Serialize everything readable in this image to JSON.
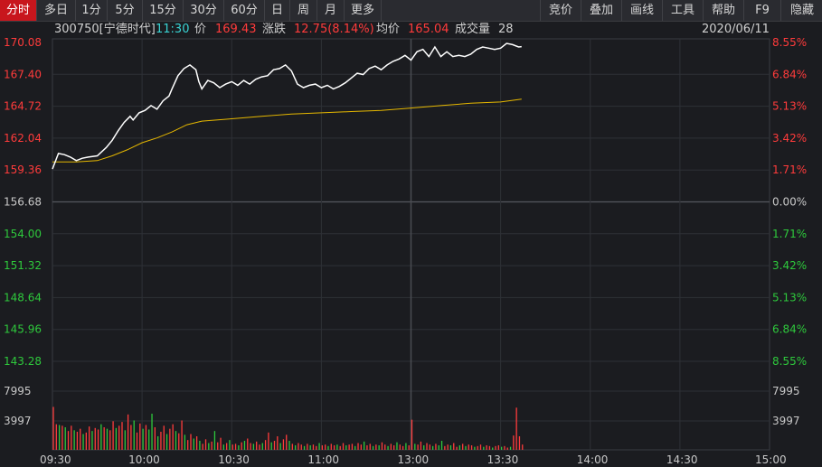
{
  "toolbar": {
    "left_tabs": [
      "分时",
      "多日",
      "1分",
      "5分",
      "15分",
      "30分",
      "60分",
      "日",
      "周",
      "月",
      "更多"
    ],
    "right_tabs": [
      "竞价",
      "叠加",
      "画线",
      "工具",
      "帮助",
      "F9",
      "隐藏"
    ]
  },
  "info": {
    "code_name": "300750[宁德时代]",
    "time": "11:30",
    "price_label": "价",
    "price": "169.43",
    "change_label": "涨跌",
    "change": "12.75(8.14%)",
    "avg_label": "均价",
    "avg": "165.04",
    "volume_label": "成交量",
    "volume": "28",
    "date": "2020/06/11"
  },
  "colors": {
    "up": "#ff3b3b",
    "down": "#2ec93c",
    "price_line": "#ffffff",
    "avg_line": "#e6b800",
    "grid": "#2e3036",
    "axis_text": "#c8c8c8"
  },
  "chart_data": {
    "type": "line",
    "prev_close": 156.68,
    "price_ticks": [
      "170.08",
      "167.40",
      "164.72",
      "162.04",
      "159.36",
      "156.68",
      "154.00",
      "151.32",
      "148.64",
      "145.96",
      "143.28"
    ],
    "percent_ticks": [
      "8.55%",
      "6.84%",
      "5.13%",
      "3.42%",
      "1.71%",
      "0.00%",
      "1.71%",
      "3.42%",
      "5.13%",
      "6.84%",
      "8.55%"
    ],
    "volume_ticks": [
      "7995",
      "3997"
    ],
    "time_labels": [
      "09:30",
      "10:00",
      "10:30",
      "11:00",
      "13:00",
      "13:30",
      "14:00",
      "14:30",
      "15:00"
    ],
    "ylim": [
      143.28,
      170.08
    ],
    "price_series": [
      [
        0,
        159.2
      ],
      [
        2,
        160.5
      ],
      [
        4,
        160.4
      ],
      [
        6,
        160.2
      ],
      [
        8,
        159.9
      ],
      [
        10,
        160.1
      ],
      [
        12,
        160.2
      ],
      [
        15,
        160.3
      ],
      [
        18,
        161.0
      ],
      [
        20,
        161.6
      ],
      [
        22,
        162.4
      ],
      [
        24,
        163.1
      ],
      [
        26,
        163.6
      ],
      [
        27,
        163.3
      ],
      [
        29,
        163.9
      ],
      [
        31,
        164.1
      ],
      [
        33,
        164.5
      ],
      [
        35,
        164.2
      ],
      [
        37,
        164.9
      ],
      [
        39,
        165.3
      ],
      [
        40,
        165.9
      ],
      [
        42,
        167.0
      ],
      [
        44,
        167.6
      ],
      [
        46,
        167.9
      ],
      [
        48,
        167.5
      ],
      [
        49,
        166.5
      ],
      [
        50,
        165.9
      ],
      [
        52,
        166.6
      ],
      [
        54,
        166.4
      ],
      [
        56,
        166.0
      ],
      [
        58,
        166.3
      ],
      [
        60,
        166.5
      ],
      [
        62,
        166.2
      ],
      [
        64,
        166.6
      ],
      [
        66,
        166.3
      ],
      [
        68,
        166.7
      ],
      [
        70,
        166.9
      ],
      [
        72,
        167.0
      ],
      [
        74,
        167.5
      ],
      [
        76,
        167.6
      ],
      [
        78,
        167.9
      ],
      [
        80,
        167.4
      ],
      [
        82,
        166.3
      ],
      [
        84,
        166.0
      ],
      [
        86,
        166.2
      ],
      [
        88,
        166.3
      ],
      [
        90,
        166.0
      ],
      [
        92,
        166.2
      ],
      [
        94,
        165.9
      ],
      [
        96,
        166.1
      ],
      [
        98,
        166.4
      ],
      [
        100,
        166.8
      ],
      [
        102,
        167.2
      ],
      [
        104,
        167.1
      ],
      [
        106,
        167.6
      ],
      [
        108,
        167.8
      ],
      [
        110,
        167.5
      ],
      [
        112,
        167.9
      ],
      [
        114,
        168.2
      ],
      [
        116,
        168.4
      ],
      [
        118,
        168.7
      ],
      [
        120,
        168.3
      ],
      [
        122,
        169.0
      ],
      [
        124,
        169.2
      ],
      [
        126,
        168.6
      ],
      [
        128,
        169.4
      ],
      [
        130,
        168.6
      ],
      [
        132,
        169.0
      ],
      [
        134,
        168.6
      ],
      [
        136,
        168.7
      ],
      [
        138,
        168.6
      ],
      [
        140,
        168.8
      ],
      [
        142,
        169.2
      ],
      [
        144,
        169.4
      ],
      [
        146,
        169.3
      ],
      [
        148,
        169.2
      ],
      [
        150,
        169.3
      ],
      [
        152,
        169.7
      ],
      [
        154,
        169.6
      ],
      [
        156,
        169.4
      ],
      [
        157,
        169.43
      ]
    ],
    "avg_series": [
      [
        0,
        159.8
      ],
      [
        8,
        159.8
      ],
      [
        15,
        159.9
      ],
      [
        20,
        160.3
      ],
      [
        25,
        160.8
      ],
      [
        30,
        161.4
      ],
      [
        35,
        161.8
      ],
      [
        40,
        162.3
      ],
      [
        45,
        162.9
      ],
      [
        50,
        163.2
      ],
      [
        60,
        163.4
      ],
      [
        70,
        163.6
      ],
      [
        80,
        163.8
      ],
      [
        90,
        163.9
      ],
      [
        100,
        164.0
      ],
      [
        110,
        164.1
      ],
      [
        120,
        164.3
      ],
      [
        130,
        164.5
      ],
      [
        140,
        164.7
      ],
      [
        150,
        164.8
      ],
      [
        157,
        165.04
      ]
    ],
    "volume_series": [
      [
        0,
        5700,
        "up"
      ],
      [
        1,
        3400,
        "up"
      ],
      [
        2,
        3300,
        "down"
      ],
      [
        3,
        3200,
        "up"
      ],
      [
        4,
        3000,
        "down"
      ],
      [
        5,
        2500,
        "up"
      ],
      [
        6,
        3200,
        "up"
      ],
      [
        7,
        2600,
        "down"
      ],
      [
        8,
        2400,
        "up"
      ],
      [
        9,
        2800,
        "up"
      ],
      [
        10,
        2100,
        "down"
      ],
      [
        11,
        2300,
        "up"
      ],
      [
        12,
        3100,
        "up"
      ],
      [
        13,
        2500,
        "down"
      ],
      [
        14,
        2900,
        "up"
      ],
      [
        15,
        2700,
        "up"
      ],
      [
        16,
        3400,
        "down"
      ],
      [
        17,
        3000,
        "up"
      ],
      [
        18,
        2800,
        "down"
      ],
      [
        19,
        2600,
        "up"
      ],
      [
        20,
        3800,
        "up"
      ],
      [
        21,
        2900,
        "down"
      ],
      [
        22,
        3200,
        "up"
      ],
      [
        23,
        3700,
        "up"
      ],
      [
        24,
        2600,
        "down"
      ],
      [
        25,
        4700,
        "up"
      ],
      [
        26,
        3300,
        "up"
      ],
      [
        27,
        3900,
        "down"
      ],
      [
        28,
        2300,
        "up"
      ],
      [
        29,
        3500,
        "up"
      ],
      [
        30,
        2800,
        "down"
      ],
      [
        31,
        3300,
        "up"
      ],
      [
        32,
        2700,
        "down"
      ],
      [
        33,
        4800,
        "down"
      ],
      [
        34,
        3000,
        "up"
      ],
      [
        35,
        1800,
        "down"
      ],
      [
        36,
        2400,
        "up"
      ],
      [
        37,
        3200,
        "up"
      ],
      [
        38,
        2100,
        "down"
      ],
      [
        39,
        2800,
        "up"
      ],
      [
        40,
        3400,
        "up"
      ],
      [
        41,
        2500,
        "down"
      ],
      [
        42,
        2200,
        "up"
      ],
      [
        43,
        3900,
        "up"
      ],
      [
        44,
        2000,
        "down"
      ],
      [
        45,
        1300,
        "up"
      ],
      [
        46,
        2100,
        "up"
      ],
      [
        47,
        1500,
        "down"
      ],
      [
        48,
        1800,
        "up"
      ],
      [
        49,
        1200,
        "down"
      ],
      [
        50,
        800,
        "up"
      ],
      [
        51,
        1400,
        "up"
      ],
      [
        52,
        900,
        "down"
      ],
      [
        53,
        1100,
        "up"
      ],
      [
        54,
        2500,
        "down"
      ],
      [
        55,
        1000,
        "up"
      ],
      [
        56,
        1600,
        "up"
      ],
      [
        57,
        700,
        "down"
      ],
      [
        58,
        900,
        "up"
      ],
      [
        59,
        1300,
        "down"
      ],
      [
        60,
        700,
        "up"
      ],
      [
        61,
        800,
        "up"
      ],
      [
        62,
        600,
        "down"
      ],
      [
        63,
        1000,
        "up"
      ],
      [
        64,
        1200,
        "down"
      ],
      [
        65,
        1500,
        "up"
      ],
      [
        66,
        900,
        "up"
      ],
      [
        67,
        800,
        "down"
      ],
      [
        68,
        1100,
        "up"
      ],
      [
        69,
        700,
        "up"
      ],
      [
        70,
        900,
        "down"
      ],
      [
        71,
        1300,
        "up"
      ],
      [
        72,
        2300,
        "up"
      ],
      [
        73,
        1000,
        "down"
      ],
      [
        74,
        1200,
        "up"
      ],
      [
        75,
        1800,
        "up"
      ],
      [
        76,
        900,
        "down"
      ],
      [
        77,
        1400,
        "up"
      ],
      [
        78,
        2000,
        "up"
      ],
      [
        79,
        1200,
        "down"
      ],
      [
        80,
        800,
        "up"
      ],
      [
        81,
        600,
        "down"
      ],
      [
        82,
        900,
        "up"
      ],
      [
        83,
        700,
        "up"
      ],
      [
        84,
        500,
        "down"
      ],
      [
        85,
        800,
        "up"
      ],
      [
        86,
        600,
        "down"
      ],
      [
        87,
        700,
        "up"
      ],
      [
        88,
        500,
        "up"
      ],
      [
        89,
        900,
        "down"
      ],
      [
        90,
        600,
        "up"
      ],
      [
        91,
        700,
        "up"
      ],
      [
        92,
        500,
        "down"
      ],
      [
        93,
        800,
        "up"
      ],
      [
        94,
        600,
        "up"
      ],
      [
        95,
        700,
        "down"
      ],
      [
        96,
        500,
        "up"
      ],
      [
        97,
        900,
        "up"
      ],
      [
        98,
        600,
        "down"
      ],
      [
        99,
        700,
        "up"
      ],
      [
        100,
        800,
        "up"
      ],
      [
        101,
        500,
        "down"
      ],
      [
        102,
        900,
        "up"
      ],
      [
        103,
        700,
        "up"
      ],
      [
        104,
        1100,
        "down"
      ],
      [
        105,
        600,
        "up"
      ],
      [
        106,
        800,
        "up"
      ],
      [
        107,
        500,
        "down"
      ],
      [
        108,
        700,
        "up"
      ],
      [
        109,
        600,
        "down"
      ],
      [
        110,
        1000,
        "up"
      ],
      [
        111,
        700,
        "up"
      ],
      [
        112,
        500,
        "down"
      ],
      [
        113,
        800,
        "up"
      ],
      [
        114,
        600,
        "up"
      ],
      [
        115,
        1000,
        "down"
      ],
      [
        116,
        700,
        "up"
      ],
      [
        117,
        500,
        "up"
      ],
      [
        118,
        900,
        "down"
      ],
      [
        119,
        600,
        "up"
      ],
      [
        120,
        4000,
        "up"
      ],
      [
        121,
        800,
        "down"
      ],
      [
        122,
        700,
        "up"
      ],
      [
        123,
        1100,
        "up"
      ],
      [
        124,
        600,
        "down"
      ],
      [
        125,
        900,
        "up"
      ],
      [
        126,
        700,
        "up"
      ],
      [
        127,
        500,
        "down"
      ],
      [
        128,
        800,
        "up"
      ],
      [
        129,
        600,
        "down"
      ],
      [
        130,
        1200,
        "down"
      ],
      [
        131,
        500,
        "up"
      ],
      [
        132,
        700,
        "up"
      ],
      [
        133,
        600,
        "down"
      ],
      [
        134,
        900,
        "up"
      ],
      [
        135,
        400,
        "up"
      ],
      [
        136,
        600,
        "down"
      ],
      [
        137,
        800,
        "up"
      ],
      [
        138,
        500,
        "down"
      ],
      [
        139,
        700,
        "up"
      ],
      [
        140,
        600,
        "up"
      ],
      [
        141,
        400,
        "down"
      ],
      [
        142,
        500,
        "up"
      ],
      [
        143,
        700,
        "up"
      ],
      [
        144,
        400,
        "down"
      ],
      [
        145,
        600,
        "up"
      ],
      [
        146,
        500,
        "up"
      ],
      [
        147,
        300,
        "down"
      ],
      [
        148,
        500,
        "up"
      ],
      [
        149,
        600,
        "up"
      ],
      [
        150,
        400,
        "down"
      ],
      [
        151,
        500,
        "up"
      ],
      [
        152,
        300,
        "up"
      ],
      [
        153,
        400,
        "down"
      ],
      [
        154,
        1900,
        "up"
      ],
      [
        155,
        5600,
        "up"
      ],
      [
        156,
        1800,
        "up"
      ],
      [
        157,
        700,
        "up"
      ]
    ],
    "volume_max": 11992
  }
}
